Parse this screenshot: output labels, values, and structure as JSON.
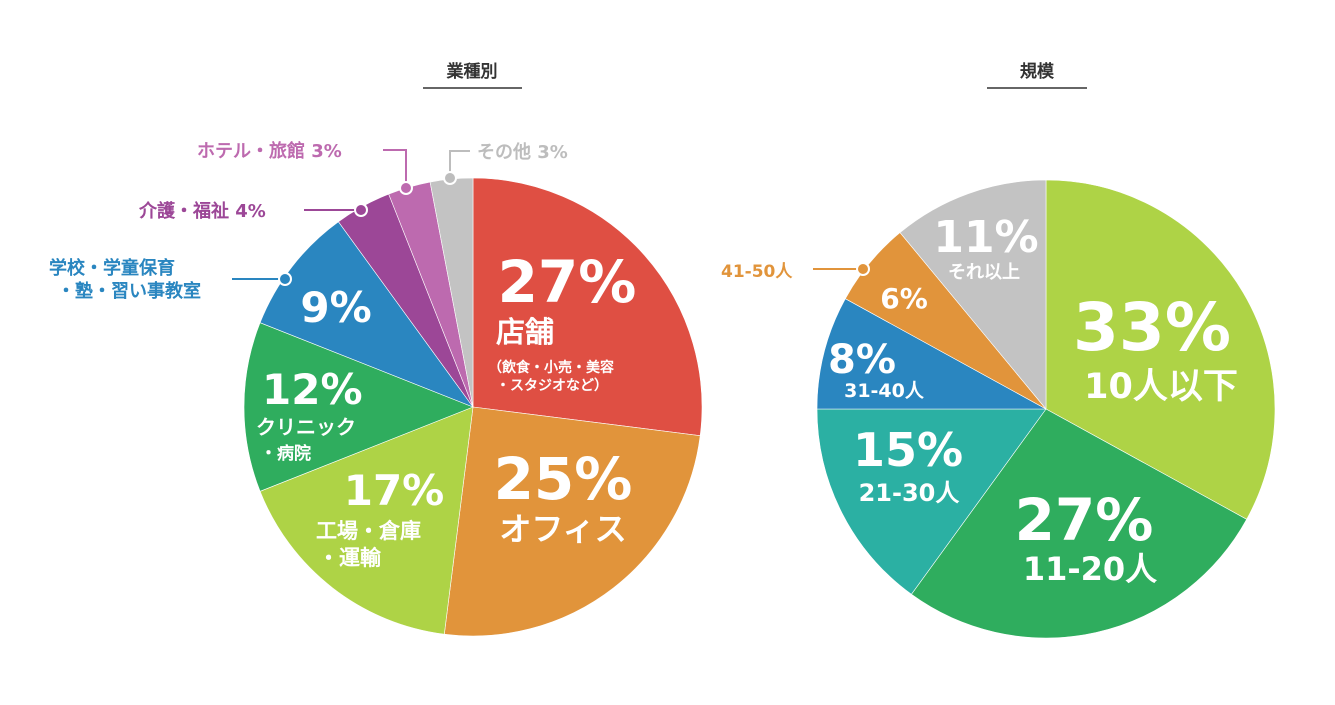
{
  "chart_data": [
    {
      "type": "pie",
      "title": "業種別",
      "unit": "%",
      "slices": [
        {
          "value": 27,
          "label_pct": "27%",
          "label": "店舗",
          "sublabel_1": "（飲食・小売・美容",
          "sublabel_2": "・スタジオなど）",
          "color": "#df4f43"
        },
        {
          "value": 25,
          "label_pct": "25%",
          "label": "オフィス",
          "color": "#e1943b"
        },
        {
          "value": 17,
          "label_pct": "17%",
          "label_1": "工場・倉庫",
          "label_2": "・運輸",
          "color": "#aed346"
        },
        {
          "value": 12,
          "label_pct": "12%",
          "label_1": "クリニック",
          "label_2": "・病院",
          "color": "#2fad5e"
        },
        {
          "value": 9,
          "label_pct": "9%",
          "label_1": "学校・学童保育",
          "label_2": "・塾・習い事教室",
          "color": "#2a86c0"
        },
        {
          "value": 4,
          "label": "介護・福祉 4%",
          "color": "#9c4797"
        },
        {
          "value": 3,
          "label": "ホテル・旅館 3%",
          "color": "#bd6aaf"
        },
        {
          "value": 3,
          "label": "その他 3%",
          "color": "#c3c3c3"
        }
      ]
    },
    {
      "type": "pie",
      "title": "規模",
      "unit": "%",
      "slices": [
        {
          "value": 33,
          "label_pct": "33%",
          "label": "10人以下",
          "color": "#aed346"
        },
        {
          "value": 27,
          "label_pct": "27%",
          "label": "11-20人",
          "color": "#2fad5e"
        },
        {
          "value": 15,
          "label_pct": "15%",
          "label": "21-30人",
          "color": "#2bb0a3"
        },
        {
          "value": 8,
          "label_pct": "8%",
          "label": "31-40人",
          "color": "#2a86c0"
        },
        {
          "value": 6,
          "label_pct": "6%",
          "label": "41-50人",
          "color": "#e1943b"
        },
        {
          "value": 11,
          "label_pct": "11%",
          "label": "それ以上",
          "color": "#c3c3c3"
        }
      ]
    }
  ]
}
